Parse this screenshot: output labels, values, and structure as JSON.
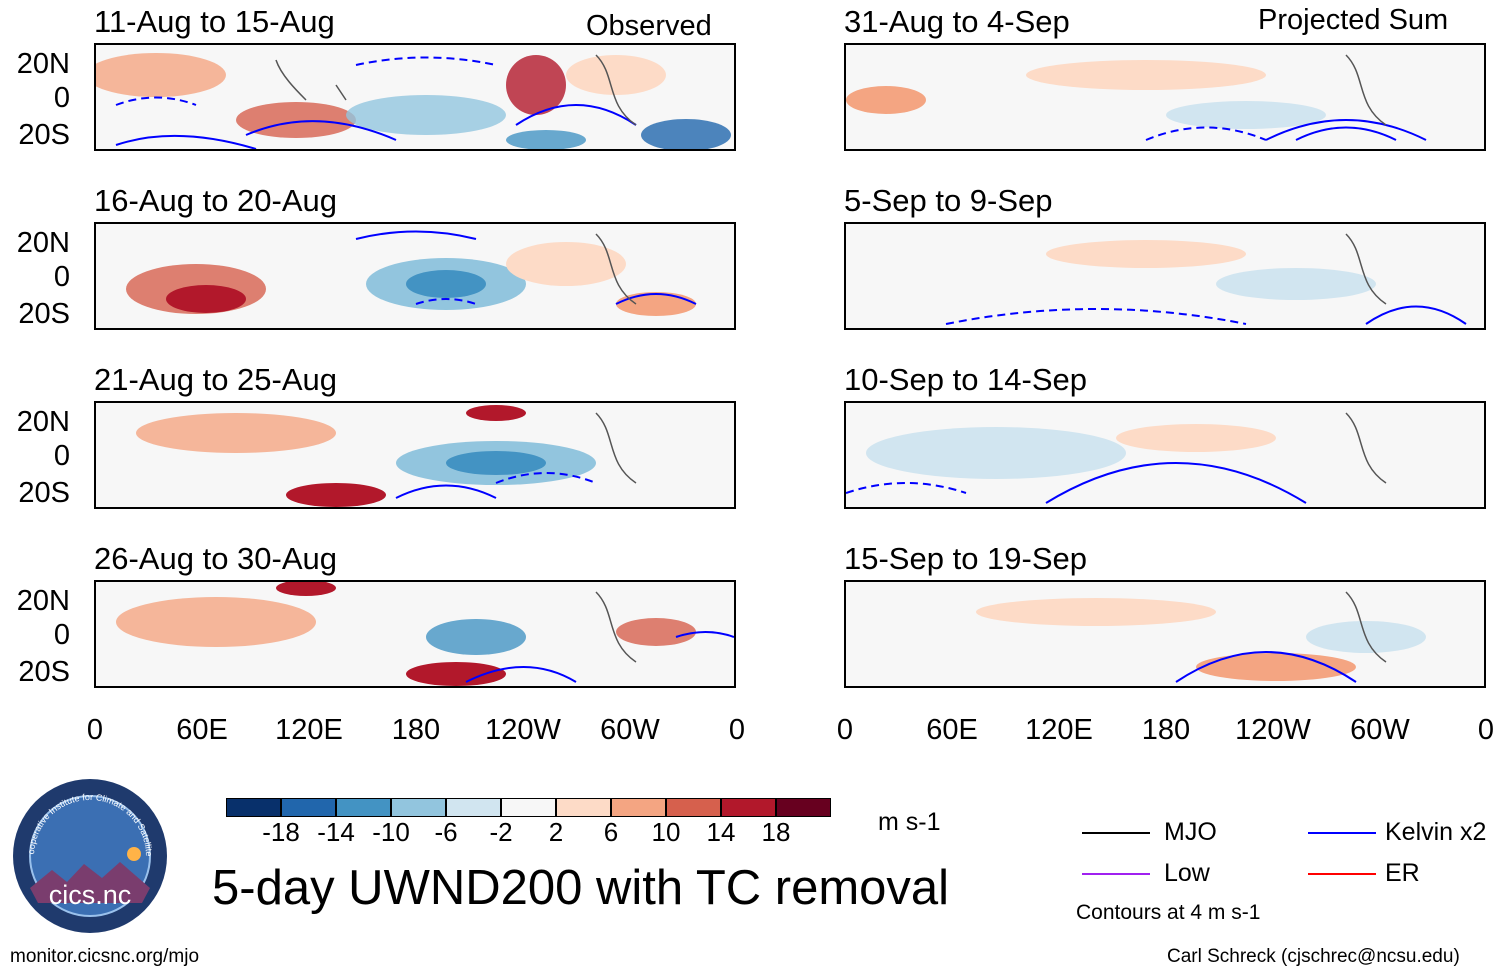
{
  "title": "5-day UWND200 with TC removal",
  "headers": {
    "observed": "Observed",
    "projected": "Projected Sum"
  },
  "panels_left": [
    "11-Aug to 15-Aug",
    "16-Aug to 20-Aug",
    "21-Aug to 25-Aug",
    "26-Aug to 30-Aug"
  ],
  "panels_right": [
    "31-Aug to 4-Sep",
    "5-Sep to 9-Sep",
    "10-Sep to 14-Sep",
    "15-Sep to 19-Sep"
  ],
  "lat_labels": [
    "20N",
    "0",
    "20S"
  ],
  "lon_labels": [
    "0",
    "60E",
    "120E",
    "180",
    "120W",
    "60W",
    "0"
  ],
  "colorbar": {
    "ticks": [
      "-18",
      "-14",
      "-10",
      "-6",
      "-2",
      "2",
      "6",
      "10",
      "14",
      "18"
    ],
    "colors": [
      "#08306b",
      "#2166ac",
      "#4393c3",
      "#92c5de",
      "#d1e5f0",
      "#f7f7f7",
      "#fddbc7",
      "#f4a582",
      "#d6604d",
      "#b2182b",
      "#67001f"
    ],
    "units": "m s-1"
  },
  "legend": {
    "items": [
      {
        "label": "MJO",
        "color": "#000000"
      },
      {
        "label": "Kelvin x2",
        "color": "#0000ff"
      },
      {
        "label": "Low",
        "color": "#a020f0"
      },
      {
        "label": "ER",
        "color": "#ff0000"
      }
    ],
    "note": "Contours at 4 m s-1"
  },
  "logo": {
    "ring_text": "Cooperative Institute for Climate and Satellites",
    "name": "cics.nc"
  },
  "footer": {
    "left": "monitor.cicsnc.org/mjo",
    "right": "Carl Schreck (cjschrec@ncsu.edu)"
  }
}
